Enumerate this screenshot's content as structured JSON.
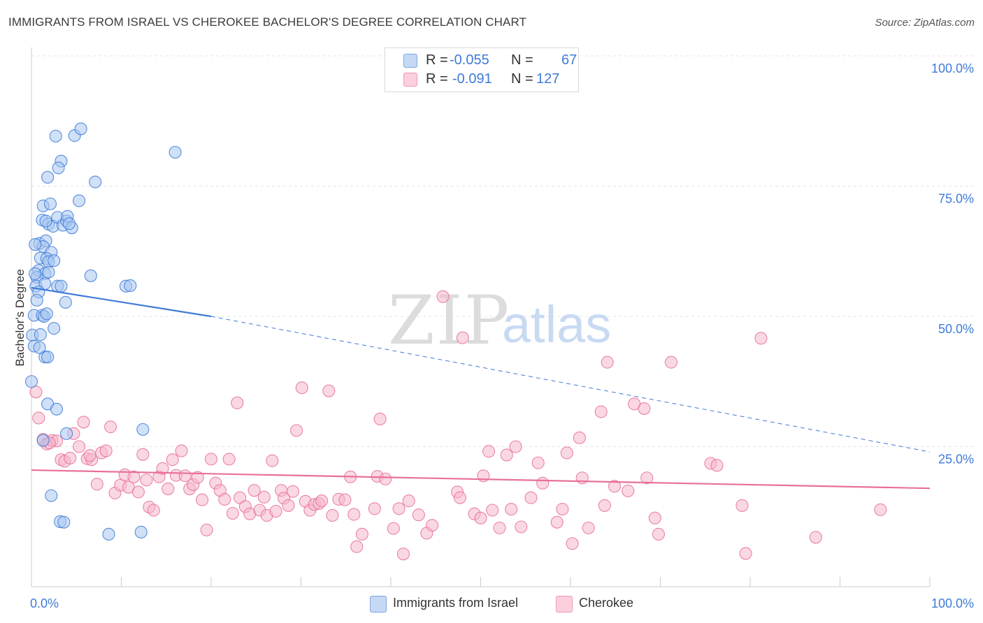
{
  "title": "IMMIGRANTS FROM ISRAEL VS CHEROKEE BACHELOR'S DEGREE CORRELATION CHART",
  "source": "Source: ZipAtlas.com",
  "watermark": {
    "zip": "ZIP",
    "atlas": "atlas"
  },
  "legend": {
    "rows": [
      {
        "r_label": "R =",
        "r_value": "-0.055",
        "n_label": "N =",
        "n_value": "67",
        "color": "#a8c6f0"
      },
      {
        "r_label": "R =",
        "r_value": "-0.091",
        "n_label": "N =",
        "n_value": "127",
        "color": "#f5b8cb"
      }
    ]
  },
  "bottom_legend": [
    {
      "label": "Immigrants from Israel",
      "color": "#a8c6f0"
    },
    {
      "label": "Cherokee",
      "color": "#f5b8cb"
    }
  ],
  "colors": {
    "blue": "#3f7ad8",
    "blue_fill": "#a8c6f0",
    "pink": "#e8709a",
    "pink_fill": "#f5b8cb",
    "grid": "#e4e4e4"
  },
  "chart_data": {
    "type": "scatter",
    "ylabel": "Bachelor's Degree",
    "xlabel": "",
    "xlim": [
      0,
      100
    ],
    "ylim": [
      0,
      100
    ],
    "x_tick_labels": [
      "0.0%",
      "100.0%"
    ],
    "y_tick_labels": [
      {
        "value": 100,
        "label": "100.0%"
      },
      {
        "value": 75,
        "label": "75.0%"
      },
      {
        "value": 50,
        "label": "50.0%"
      },
      {
        "value": 25,
        "label": "25.0%"
      }
    ],
    "grid": true,
    "series": [
      {
        "name": "Immigrants from Israel",
        "r": -0.055,
        "n": 67,
        "trend": {
          "x0": 0,
          "y0": 55.5,
          "x1": 20,
          "y1": 50,
          "dashed_to_x": 100,
          "dashed_to_y": 24
        },
        "points": [
          [
            2.7,
            84.6
          ],
          [
            4.8,
            84.7
          ],
          [
            5.5,
            86
          ],
          [
            3.3,
            79.8
          ],
          [
            3.0,
            78.5
          ],
          [
            1.8,
            76.7
          ],
          [
            7.1,
            75.8
          ],
          [
            1.3,
            71.2
          ],
          [
            2.1,
            71.6
          ],
          [
            5.3,
            72.2
          ],
          [
            1.2,
            68.5
          ],
          [
            1.9,
            67.7
          ],
          [
            2.4,
            67.3
          ],
          [
            2.9,
            69
          ],
          [
            3.5,
            67.5
          ],
          [
            3.9,
            68.3
          ],
          [
            4.0,
            69.2
          ],
          [
            4.5,
            67
          ],
          [
            0.9,
            64
          ],
          [
            1.6,
            64.5
          ],
          [
            1.3,
            63.4
          ],
          [
            2.2,
            62.3
          ],
          [
            1.0,
            61.2
          ],
          [
            1.7,
            61.1
          ],
          [
            1.9,
            60.5
          ],
          [
            0.8,
            58.8
          ],
          [
            1.5,
            58.2
          ],
          [
            1.9,
            58.5
          ],
          [
            0.6,
            57.5
          ],
          [
            6.6,
            57.8
          ],
          [
            0.5,
            55.8
          ],
          [
            1.5,
            56.3
          ],
          [
            2.9,
            55.8
          ],
          [
            3.3,
            55.8
          ],
          [
            10.5,
            55.8
          ],
          [
            11.0,
            55.9
          ],
          [
            0.8,
            54.7
          ],
          [
            0.6,
            53.1
          ],
          [
            3.8,
            52.7
          ],
          [
            0.3,
            50.2
          ],
          [
            1.2,
            50.2
          ],
          [
            1.4,
            50
          ],
          [
            2.5,
            47.7
          ],
          [
            0.1,
            46.4
          ],
          [
            1.0,
            46.5
          ],
          [
            0.3,
            44.3
          ],
          [
            1.5,
            42.2
          ],
          [
            1.8,
            42.2
          ],
          [
            0,
            37.5
          ],
          [
            1.8,
            33.2
          ],
          [
            2.8,
            32.2
          ],
          [
            1.3,
            26.2
          ],
          [
            3.9,
            27.5
          ],
          [
            12.4,
            28.3
          ],
          [
            2.2,
            15.6
          ],
          [
            3.2,
            10.6
          ],
          [
            3.6,
            10.5
          ],
          [
            8.6,
            8.2
          ],
          [
            12.2,
            8.6
          ],
          [
            16.0,
            81.5
          ],
          [
            0.4,
            63.8
          ],
          [
            2.5,
            60.7
          ],
          [
            0.9,
            44
          ],
          [
            1.6,
            68.3
          ],
          [
            4.2,
            67.8
          ],
          [
            0.4,
            58.2
          ],
          [
            1.7,
            50.5
          ]
        ]
      },
      {
        "name": "Cherokee",
        "r": -0.091,
        "n": 127,
        "trend": {
          "x0": 0,
          "y0": 20.5,
          "x1": 100,
          "y1": 17
        },
        "points": [
          [
            0.5,
            35.5
          ],
          [
            0.8,
            30.5
          ],
          [
            1.3,
            26.4
          ],
          [
            1.7,
            25.5
          ],
          [
            2.3,
            26.2
          ],
          [
            2.8,
            26.1
          ],
          [
            3.3,
            22.5
          ],
          [
            3.7,
            22.2
          ],
          [
            4.3,
            22.8
          ],
          [
            4.7,
            27.5
          ],
          [
            5.3,
            25
          ],
          [
            5.8,
            29.7
          ],
          [
            6.2,
            22.7
          ],
          [
            6.7,
            22.5
          ],
          [
            7.3,
            17.8
          ],
          [
            7.8,
            23.8
          ],
          [
            8.3,
            24.2
          ],
          [
            8.8,
            28.8
          ],
          [
            9.3,
            16.1
          ],
          [
            9.9,
            17.6
          ],
          [
            10.4,
            19.6
          ],
          [
            10.8,
            17.2
          ],
          [
            11.4,
            19.2
          ],
          [
            11.9,
            16.3
          ],
          [
            12.4,
            23.5
          ],
          [
            12.8,
            18.6
          ],
          [
            13.1,
            13.4
          ],
          [
            13.6,
            12.8
          ],
          [
            14.2,
            19.2
          ],
          [
            14.6,
            20.8
          ],
          [
            15.2,
            16.9
          ],
          [
            15.7,
            22.5
          ],
          [
            16.1,
            19.5
          ],
          [
            16.7,
            24.2
          ],
          [
            17.1,
            19.4
          ],
          [
            17.6,
            16.9
          ],
          [
            18.0,
            17.7
          ],
          [
            18.5,
            19.1
          ],
          [
            19.0,
            14.8
          ],
          [
            19.5,
            9
          ],
          [
            20.0,
            22.6
          ],
          [
            20.5,
            18
          ],
          [
            21.0,
            16.6
          ],
          [
            21.5,
            14.9
          ],
          [
            22.0,
            22.6
          ],
          [
            22.4,
            12.2
          ],
          [
            22.9,
            33.4
          ],
          [
            23.2,
            15.2
          ],
          [
            23.8,
            13.5
          ],
          [
            24.3,
            12.1
          ],
          [
            24.8,
            16.6
          ],
          [
            25.4,
            12.8
          ],
          [
            25.9,
            15.3
          ],
          [
            26.2,
            11.8
          ],
          [
            26.8,
            22.3
          ],
          [
            27.2,
            12.6
          ],
          [
            27.8,
            16.6
          ],
          [
            28.1,
            15.1
          ],
          [
            28.6,
            13.7
          ],
          [
            29.1,
            16.4
          ],
          [
            29.5,
            28.1
          ],
          [
            30.1,
            36.3
          ],
          [
            30.5,
            14.5
          ],
          [
            31.0,
            12.8
          ],
          [
            31.5,
            13.9
          ],
          [
            32.0,
            14.1
          ],
          [
            32.3,
            14.6
          ],
          [
            33.1,
            35.7
          ],
          [
            33.5,
            11.8
          ],
          [
            34.2,
            14.9
          ],
          [
            34.9,
            14.8
          ],
          [
            35.5,
            19.2
          ],
          [
            35.9,
            12
          ],
          [
            36.2,
            5.8
          ],
          [
            36.8,
            8.2
          ],
          [
            38.2,
            13.1
          ],
          [
            38.5,
            19.3
          ],
          [
            38.8,
            30.3
          ],
          [
            39.4,
            18.8
          ],
          [
            40.3,
            9.3
          ],
          [
            40.9,
            13.1
          ],
          [
            41.4,
            4.4
          ],
          [
            42.0,
            14.6
          ],
          [
            43.1,
            11.9
          ],
          [
            44.0,
            8.4
          ],
          [
            44.6,
            9.9
          ],
          [
            45.8,
            53.8
          ],
          [
            47.4,
            16.3
          ],
          [
            47.7,
            15.2
          ],
          [
            48.0,
            45.9
          ],
          [
            49.3,
            12.1
          ],
          [
            50.0,
            11.3
          ],
          [
            50.3,
            19.4
          ],
          [
            50.9,
            24.1
          ],
          [
            51.3,
            12.8
          ],
          [
            52.1,
            9.4
          ],
          [
            52.9,
            23.4
          ],
          [
            53.4,
            13
          ],
          [
            53.9,
            25
          ],
          [
            54.5,
            9.6
          ],
          [
            55.6,
            15.2
          ],
          [
            56.4,
            21.9
          ],
          [
            56.9,
            18
          ],
          [
            58.5,
            10.5
          ],
          [
            59.1,
            13
          ],
          [
            59.6,
            23.8
          ],
          [
            60.2,
            6.4
          ],
          [
            61.0,
            26.7
          ],
          [
            61.3,
            19
          ],
          [
            62.0,
            9.4
          ],
          [
            63.4,
            31.7
          ],
          [
            63.8,
            13.7
          ],
          [
            64.1,
            41.2
          ],
          [
            64.9,
            17.4
          ],
          [
            66.4,
            16.5
          ],
          [
            67.1,
            33.2
          ],
          [
            68.2,
            32.3
          ],
          [
            68.5,
            19
          ],
          [
            69.4,
            11.3
          ],
          [
            69.8,
            8.2
          ],
          [
            71.2,
            41.2
          ],
          [
            75.6,
            21.8
          ],
          [
            76.3,
            21.4
          ],
          [
            79.1,
            13.7
          ],
          [
            79.5,
            4.5
          ],
          [
            81.2,
            45.8
          ],
          [
            87.3,
            7.6
          ],
          [
            94.5,
            12.9
          ],
          [
            2.0,
            25.7
          ],
          [
            6.5,
            23.3
          ]
        ]
      }
    ]
  }
}
